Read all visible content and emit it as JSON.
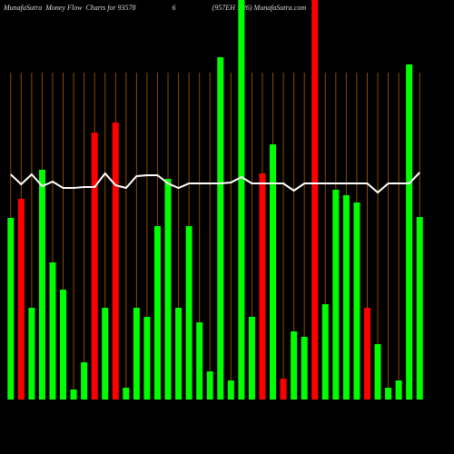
{
  "chart_data": {
    "type": "bar",
    "title": "MunafaSutra  Money Flow  Charts for 93578                    6                    (957EH 1.26) MunafaSutra.com",
    "ylim": [
      0,
      440
    ],
    "values": [
      200,
      221,
      101,
      253,
      151,
      121,
      11,
      41,
      294,
      101,
      305,
      13,
      101,
      91,
      191,
      243,
      101,
      191,
      85,
      31,
      377,
      21,
      440,
      91,
      249,
      281,
      23,
      75,
      69,
      440,
      105,
      231,
      225,
      217,
      101,
      61,
      13,
      21,
      369,
      201
    ],
    "colors": [
      "#00ff00",
      "#ff0000",
      "#00ff00",
      "#00ff00",
      "#00ff00",
      "#00ff00",
      "#00ff00",
      "#00ff00",
      "#ff0000",
      "#00ff00",
      "#ff0000",
      "#00ff00",
      "#00ff00",
      "#00ff00",
      "#00ff00",
      "#00ff00",
      "#00ff00",
      "#00ff00",
      "#00ff00",
      "#00ff00",
      "#00ff00",
      "#00ff00",
      "#00ff00",
      "#00ff00",
      "#ff0000",
      "#00ff00",
      "#ff0000",
      "#00ff00",
      "#00ff00",
      "#ff0000",
      "#00ff00",
      "#00ff00",
      "#00ff00",
      "#00ff00",
      "#ff0000",
      "#00ff00",
      "#00ff00",
      "#00ff00",
      "#00ff00",
      "#00ff00"
    ],
    "line": {
      "color": "#ffffff",
      "values": [
        248,
        237,
        248,
        235,
        240,
        233,
        233,
        234,
        234,
        249,
        236,
        233,
        246,
        247,
        247,
        238,
        233,
        238,
        238,
        238,
        238,
        239,
        245,
        238,
        238,
        238,
        238,
        230,
        238,
        238,
        238,
        238,
        238,
        238,
        238,
        228,
        238,
        238,
        238,
        250
      ]
    },
    "grid_color": "#8b4a00"
  }
}
